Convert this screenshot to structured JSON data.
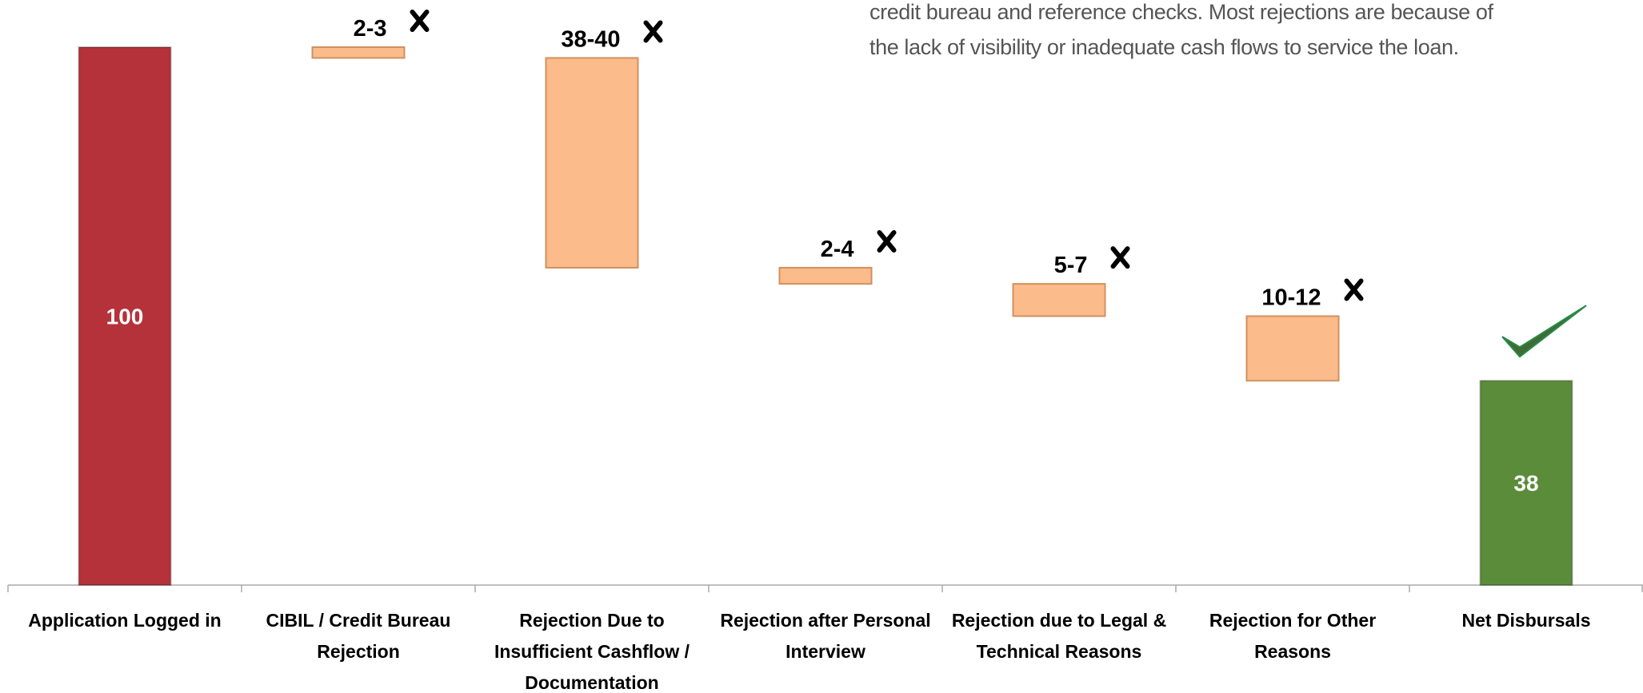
{
  "chart_data": {
    "type": "waterfall",
    "annotation": [
      "credit bureau and reference checks. Most rejections are because of",
      "the lack of visibility or inadequate cash flows to service the loan."
    ],
    "categories": [
      "Application Logged in",
      "CIBIL / Credit Bureau Rejection",
      "Rejection Due to Insufficient Cashflow / Documentation",
      "Rejection after Personal Interview",
      "Rejection due to Legal & Technical Reasons",
      "Rejection for Other Reasons",
      "Net Disbursals"
    ],
    "values": [
      100,
      2,
      39,
      3,
      6,
      12,
      38
    ],
    "value_labels": [
      "100",
      "2-3",
      "38-40",
      "2-4",
      "5-7",
      "10-12",
      "38"
    ],
    "colors": [
      "#b5323a",
      "#fbbb8a",
      "#fbbb8a",
      "#fbbb8a",
      "#fbbb8a",
      "#fbbb8a",
      "#5b8c3a"
    ],
    "ylim": [
      0,
      100
    ]
  }
}
